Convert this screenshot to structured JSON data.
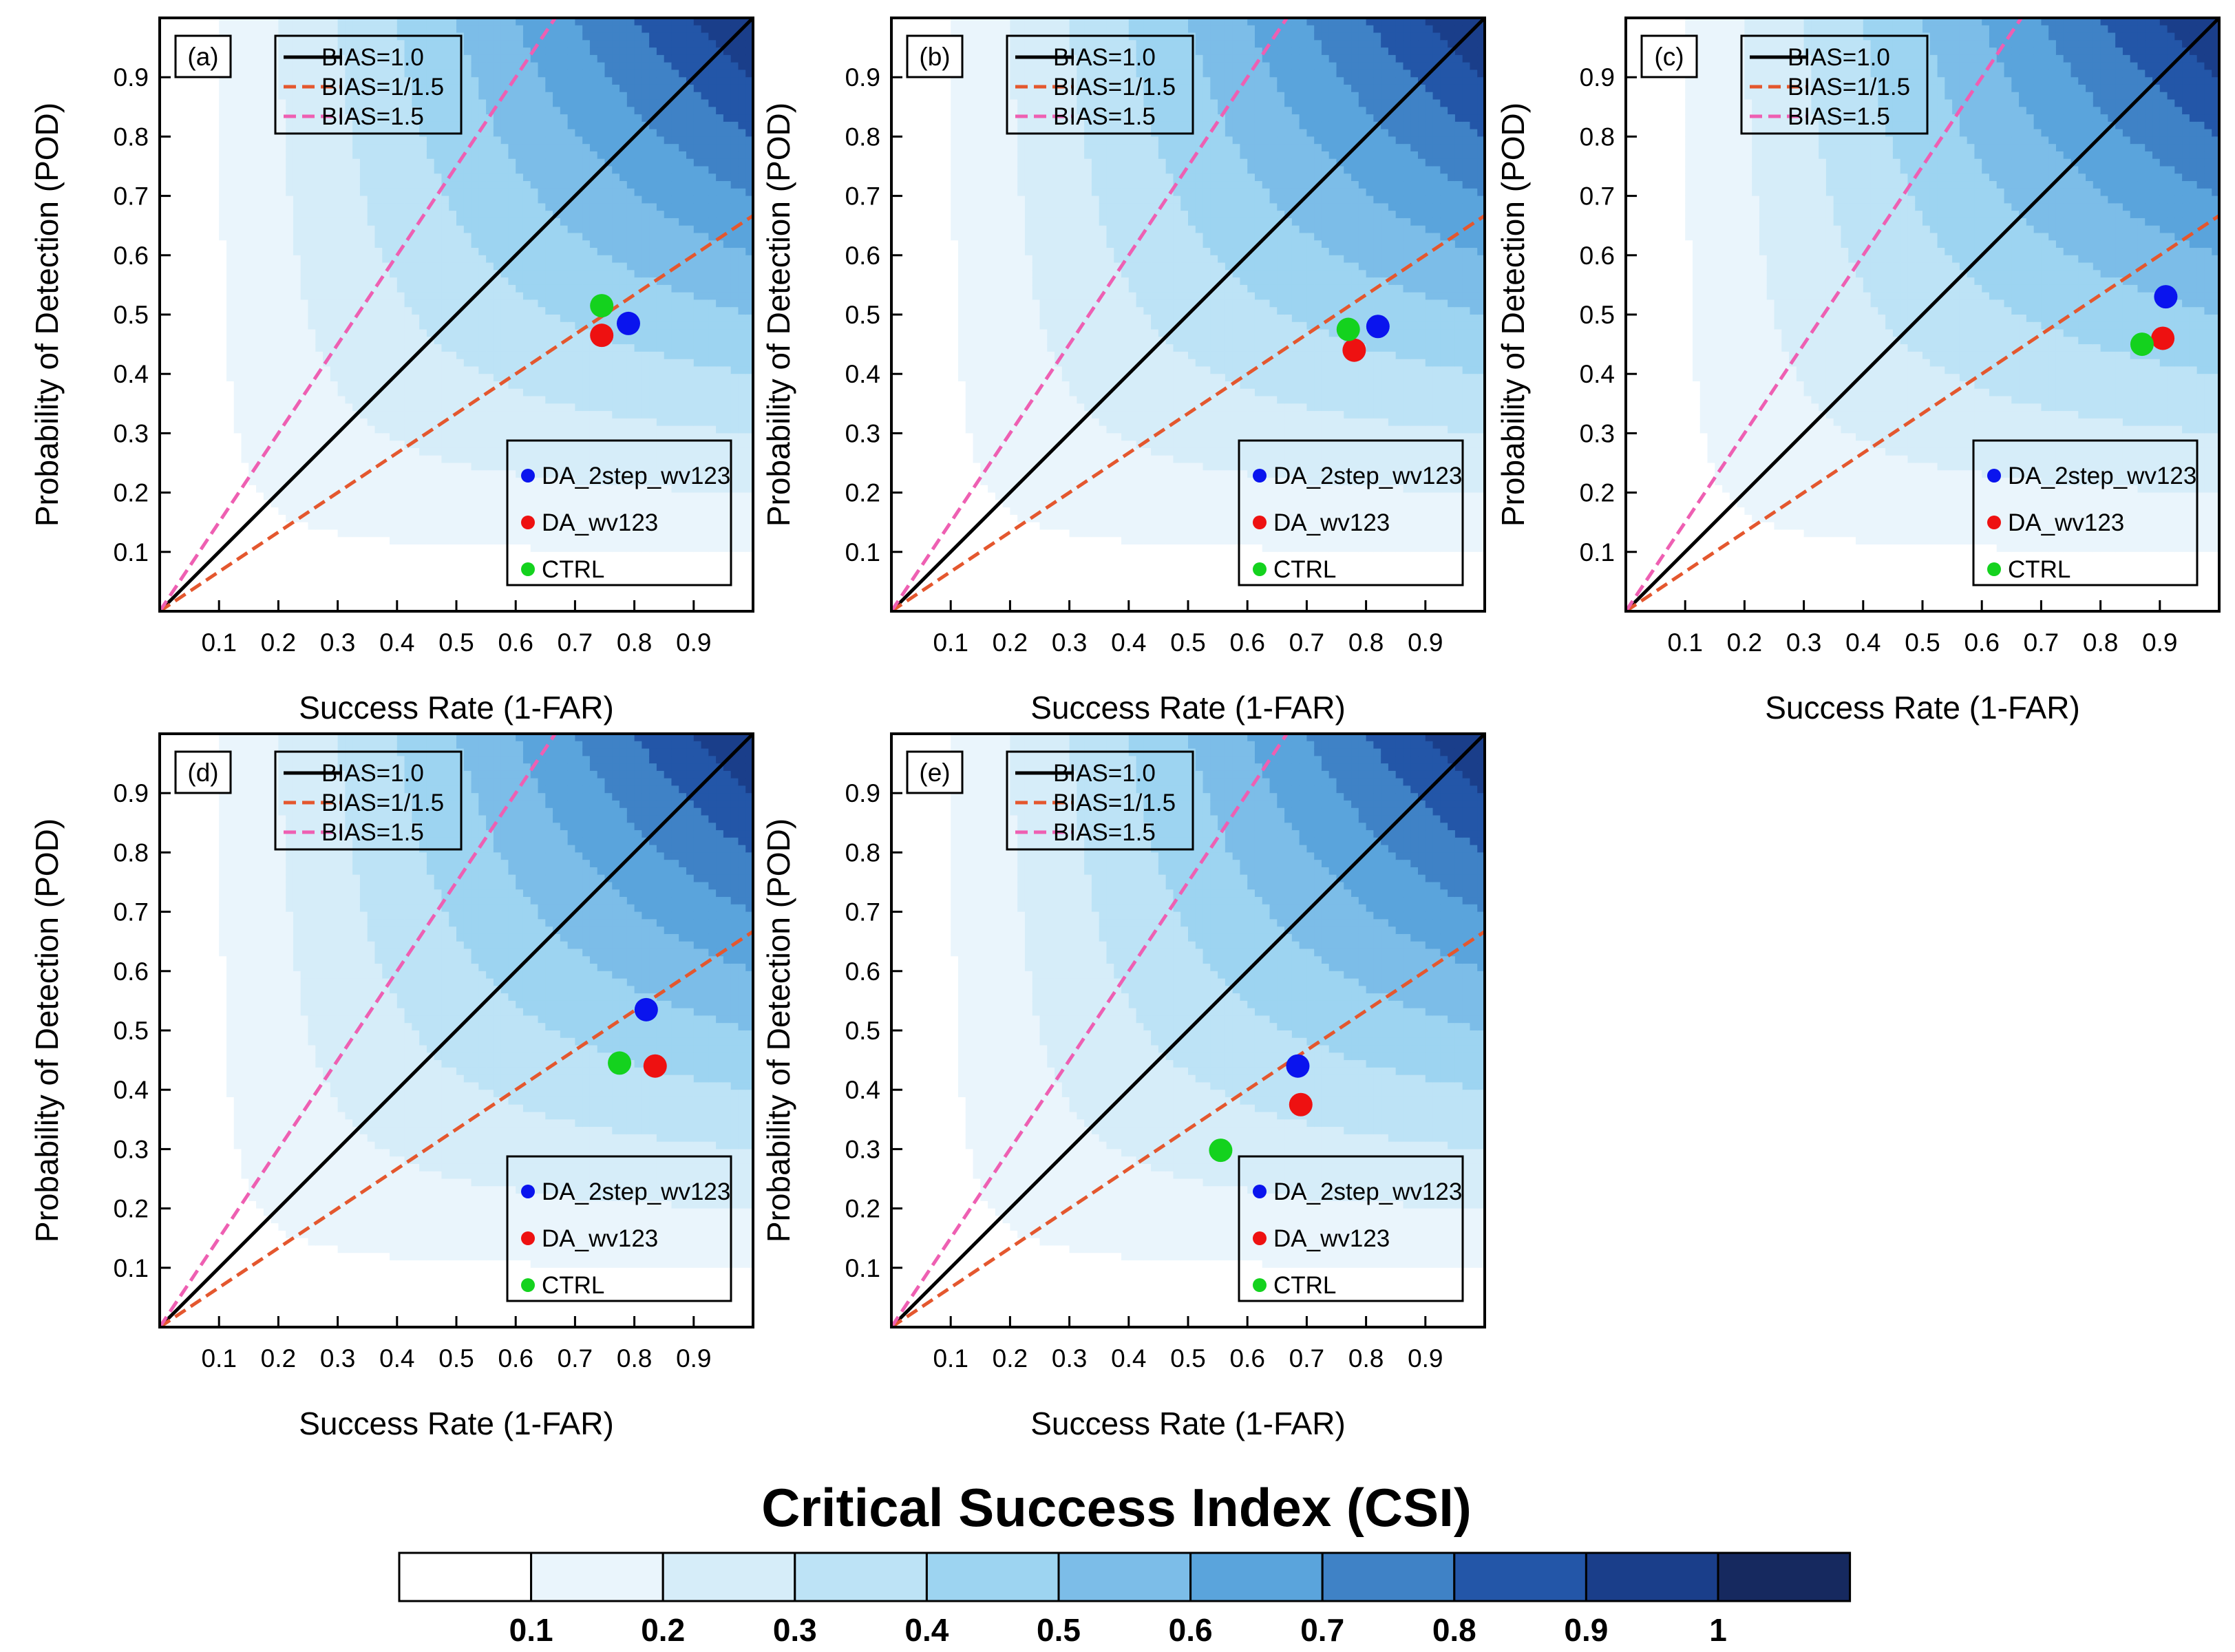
{
  "chart_data": {
    "type": "scatter",
    "description_type": "performance-diagram",
    "xlabel": "Success Rate (1-FAR)",
    "ylabel": "Probability of Detection (POD)",
    "xlim": [
      0,
      1
    ],
    "ylim": [
      0,
      1
    ],
    "x_ticks": [
      "0.1",
      "0.2",
      "0.3",
      "0.4",
      "0.5",
      "0.6",
      "0.7",
      "0.8",
      "0.9"
    ],
    "y_ticks": [
      "0.1",
      "0.2",
      "0.3",
      "0.4",
      "0.5",
      "0.6",
      "0.7",
      "0.8",
      "0.9"
    ],
    "bias_lines": [
      {
        "label": "BIAS=1.0",
        "value": 1.0,
        "color": "#000000",
        "dash": false
      },
      {
        "label": "BIAS=1/1.5",
        "value": 0.6667,
        "color": "#e4572e",
        "dash": true
      },
      {
        "label": "BIAS=1.5",
        "value": 1.5,
        "color": "#ee5fb2",
        "dash": true
      }
    ],
    "series_legend": [
      {
        "name": "DA_2step_wv123",
        "color": "#0a14ee"
      },
      {
        "name": "DA_wv123",
        "color": "#ee1111"
      },
      {
        "name": "CTRL",
        "color": "#14d21e"
      }
    ],
    "panels": [
      {
        "label": "(a)",
        "points": [
          {
            "series": "DA_2step_wv123",
            "x": 0.79,
            "y": 0.485
          },
          {
            "series": "DA_wv123",
            "x": 0.745,
            "y": 0.465
          },
          {
            "series": "CTRL",
            "x": 0.745,
            "y": 0.515
          }
        ]
      },
      {
        "label": "(b)",
        "points": [
          {
            "series": "DA_2step_wv123",
            "x": 0.82,
            "y": 0.48
          },
          {
            "series": "DA_wv123",
            "x": 0.78,
            "y": 0.44
          },
          {
            "series": "CTRL",
            "x": 0.77,
            "y": 0.475
          }
        ]
      },
      {
        "label": "(c)",
        "points": [
          {
            "series": "DA_2step_wv123",
            "x": 0.91,
            "y": 0.53
          },
          {
            "series": "DA_wv123",
            "x": 0.905,
            "y": 0.46
          },
          {
            "series": "CTRL",
            "x": 0.87,
            "y": 0.45
          }
        ]
      },
      {
        "label": "(d)",
        "points": [
          {
            "series": "DA_2step_wv123",
            "x": 0.82,
            "y": 0.535
          },
          {
            "series": "DA_wv123",
            "x": 0.835,
            "y": 0.44
          },
          {
            "series": "CTRL",
            "x": 0.775,
            "y": 0.445
          }
        ]
      },
      {
        "label": "(e)",
        "points": [
          {
            "series": "DA_2step_wv123",
            "x": 0.685,
            "y": 0.44
          },
          {
            "series": "DA_wv123",
            "x": 0.69,
            "y": 0.375
          },
          {
            "series": "CTRL",
            "x": 0.555,
            "y": 0.298
          }
        ]
      }
    ],
    "colorbar": {
      "title": "Critical Success Index (CSI)",
      "tick_labels": [
        "0.1",
        "0.2",
        "0.3",
        "0.4",
        "0.5",
        "0.6",
        "0.7",
        "0.8",
        "0.9",
        "1"
      ],
      "levels": [
        0.1,
        0.2,
        0.3,
        0.4,
        0.5,
        0.6,
        0.7,
        0.8,
        0.9,
        1.0
      ],
      "colors": [
        "#ffffff",
        "#eaf5fc",
        "#d6edf9",
        "#bde3f6",
        "#9dd4f1",
        "#7cbde8",
        "#5aa4dc",
        "#3f82c6",
        "#2356a8",
        "#1a3e8a",
        "#16295f"
      ]
    }
  }
}
